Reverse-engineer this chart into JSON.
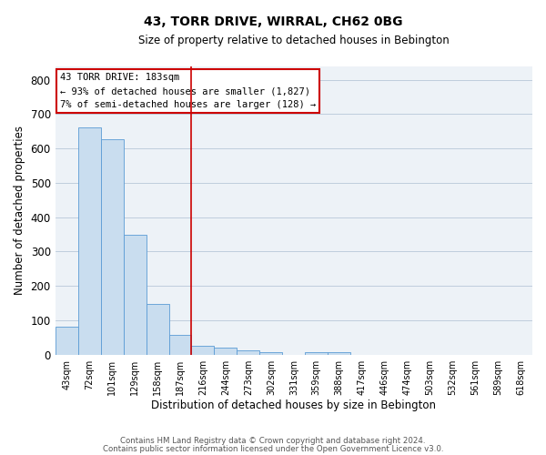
{
  "title": "43, TORR DRIVE, WIRRAL, CH62 0BG",
  "subtitle": "Size of property relative to detached houses in Bebington",
  "xlabel": "Distribution of detached houses by size in Bebington",
  "ylabel": "Number of detached properties",
  "bar_color": "#c9ddef",
  "bar_edge_color": "#5b9bd5",
  "categories": [
    "43sqm",
    "72sqm",
    "101sqm",
    "129sqm",
    "158sqm",
    "187sqm",
    "216sqm",
    "244sqm",
    "273sqm",
    "302sqm",
    "331sqm",
    "359sqm",
    "388sqm",
    "417sqm",
    "446sqm",
    "474sqm",
    "503sqm",
    "532sqm",
    "561sqm",
    "589sqm",
    "618sqm"
  ],
  "values": [
    82,
    662,
    628,
    348,
    148,
    58,
    26,
    21,
    13,
    6,
    0,
    8,
    8,
    0,
    0,
    0,
    0,
    0,
    0,
    0,
    0
  ],
  "vline_color": "#cc0000",
  "ylim": [
    0,
    840
  ],
  "yticks": [
    0,
    100,
    200,
    300,
    400,
    500,
    600,
    700,
    800
  ],
  "annotation_title": "43 TORR DRIVE: 183sqm",
  "annotation_line1": "← 93% of detached houses are smaller (1,827)",
  "annotation_line2": "7% of semi-detached houses are larger (128) →",
  "annotation_box_color": "#ffffff",
  "annotation_box_edge": "#cc0000",
  "background_color": "#edf2f7",
  "footer1": "Contains HM Land Registry data © Crown copyright and database right 2024.",
  "footer2": "Contains public sector information licensed under the Open Government Licence v3.0."
}
